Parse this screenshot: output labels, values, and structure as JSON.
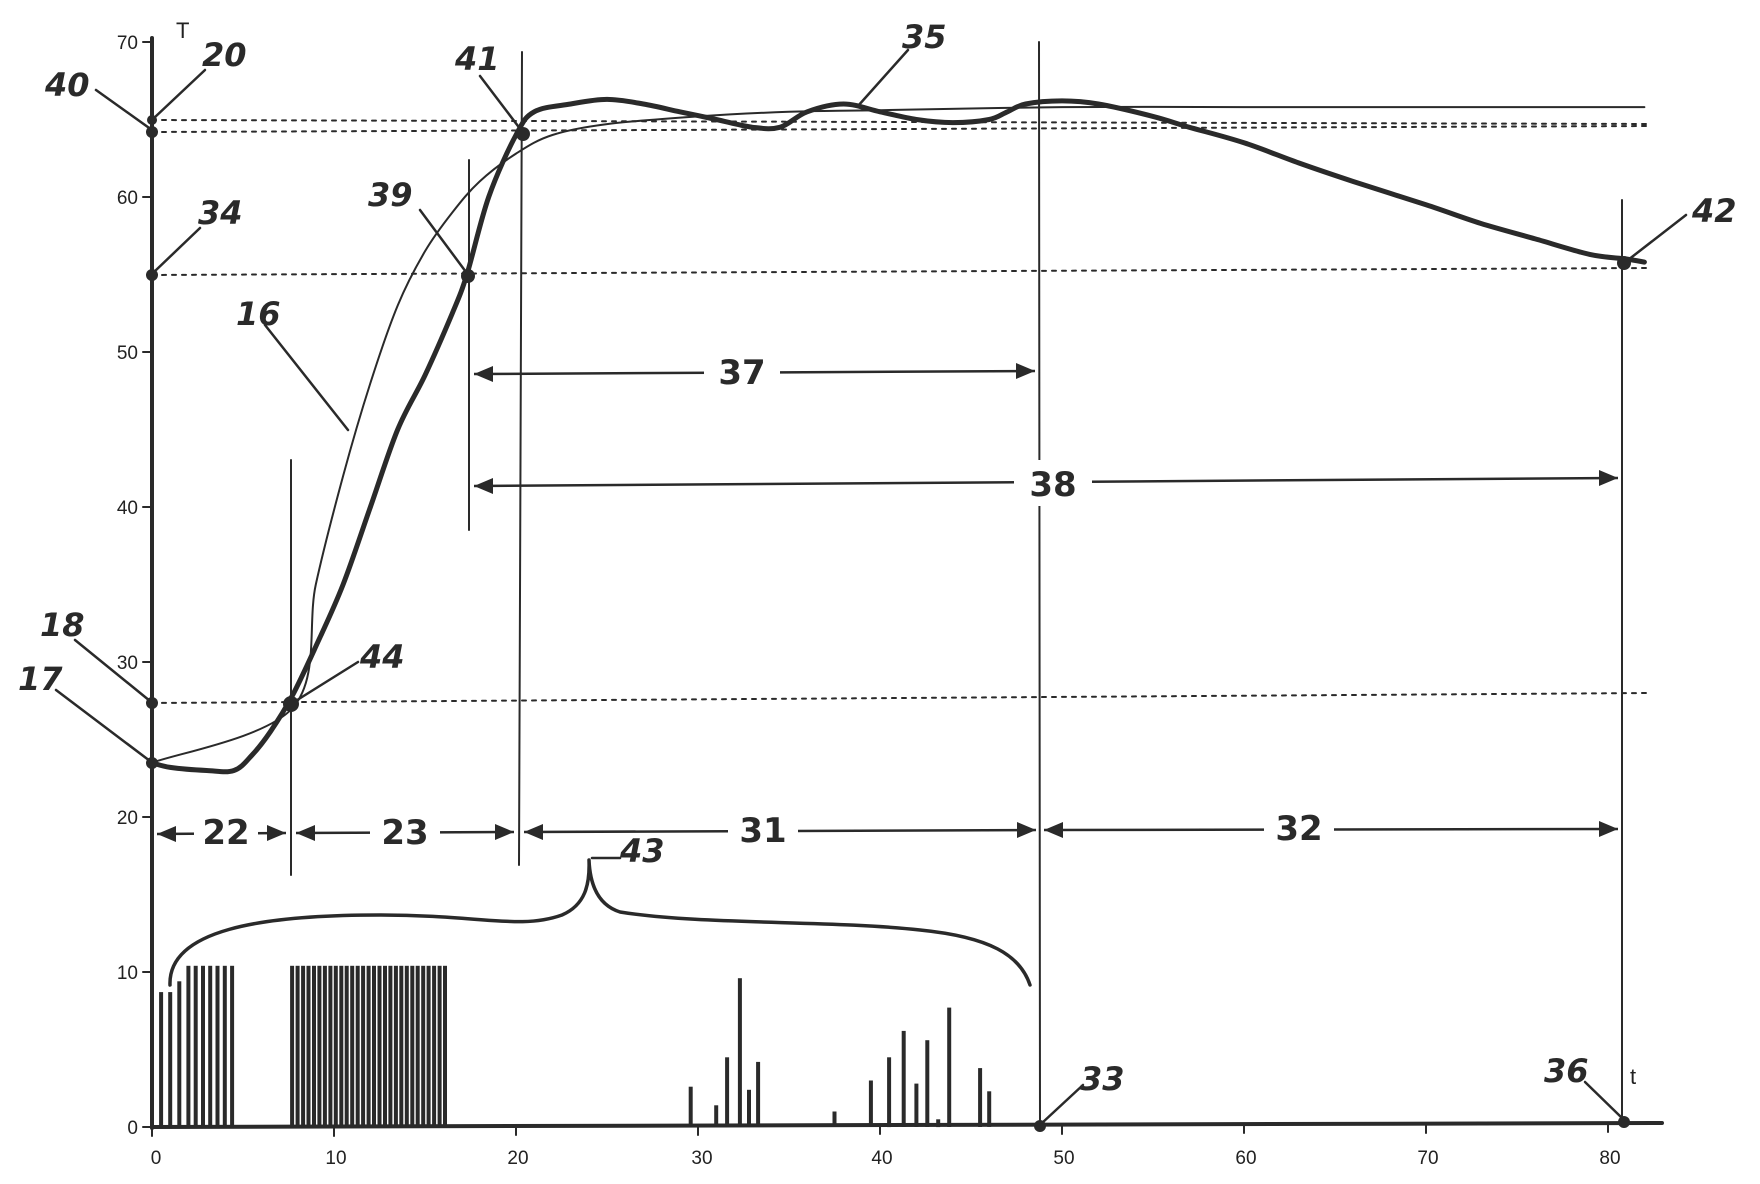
{
  "figure": {
    "y_axis_label": "T",
    "x_axis_label": "t",
    "y_ticks": [
      "0",
      "10",
      "20",
      "30",
      "40",
      "50",
      "60",
      "70"
    ],
    "x_ticks": [
      "0",
      "10",
      "20",
      "30",
      "40",
      "50",
      "60",
      "70",
      "80"
    ],
    "reference_numerals": {
      "r16": "16",
      "r17": "17",
      "r18": "18",
      "r20": "20",
      "r22": "22",
      "r23": "23",
      "r31": "31",
      "r32": "32",
      "r33": "33",
      "r34": "34",
      "r35": "35",
      "r36": "36",
      "r37": "37",
      "r38": "38",
      "r39": "39",
      "r40": "40",
      "r41": "41",
      "r42": "42",
      "r43": "43",
      "r44": "44"
    }
  },
  "chart_data": {
    "type": "line",
    "xlim": [
      0,
      82
    ],
    "ylim": [
      0,
      70
    ],
    "series": [
      {
        "x": [
          0,
          1,
          3,
          4.5,
          5.5,
          6.5,
          7.7,
          9,
          10.5,
          12,
          13.5,
          15,
          16.5,
          17.3,
          18.5,
          20,
          21,
          23,
          25,
          27,
          29,
          31,
          33,
          34.5,
          36,
          38,
          40,
          42,
          44,
          46,
          47,
          48,
          50,
          52,
          55,
          57,
          60,
          63,
          66,
          70,
          73,
          76,
          79,
          81,
          82
        ],
        "y": [
          23.5,
          23.2,
          23,
          23,
          24,
          25.5,
          27.8,
          31,
          35,
          40,
          45,
          48.5,
          52.5,
          55,
          60,
          64,
          65.5,
          66,
          66.3,
          66,
          65.5,
          65,
          64.5,
          64.5,
          65.5,
          66,
          65.5,
          65,
          64.8,
          65,
          65.5,
          66,
          66.2,
          66,
          65.2,
          64.5,
          63.5,
          62.2,
          61,
          59.5,
          58.3,
          57.3,
          56.3,
          56,
          55.8
        ]
      },
      {
        "x": [
          0,
          7.7,
          9,
          10.5,
          12,
          13.5,
          15,
          16.5,
          18,
          20,
          22,
          25,
          30,
          35,
          40,
          50,
          60,
          70,
          82
        ],
        "y": [
          23.5,
          27,
          35,
          42,
          48,
          53,
          56.5,
          59,
          61,
          62.8,
          64,
          64.7,
          65.2,
          65.5,
          65.6,
          65.8,
          65.8,
          65.8,
          65.8
        ]
      },
      {
        "x": [
          0,
          0.5,
          1,
          1.5,
          2,
          2.4,
          2.8,
          3.2,
          3.6,
          4,
          4.4,
          7.7,
          8,
          8.3,
          8.6,
          8.9,
          9.2,
          9.5,
          9.8,
          10.1,
          10.4,
          10.7,
          11,
          11.3,
          11.6,
          11.9,
          12.2,
          12.5,
          12.8,
          13.1,
          13.4,
          13.7,
          14,
          14.3,
          14.6,
          14.9,
          15.2,
          15.5,
          15.8,
          16.1,
          29.6,
          31,
          31.6,
          32.3,
          32.8,
          33.3,
          37.5,
          39.5,
          40.5,
          41.3,
          42,
          42.6,
          43.2,
          43.8,
          45.5,
          46
        ],
        "y": [
          7.4,
          8.7,
          8.7,
          9.4,
          10.4,
          10.4,
          10.4,
          10.4,
          10.4,
          10.4,
          10.4,
          10.4,
          10.4,
          10.4,
          10.4,
          10.4,
          10.4,
          10.4,
          10.4,
          10.4,
          10.4,
          10.4,
          10.4,
          10.4,
          10.4,
          10.4,
          10.4,
          10.4,
          10.4,
          10.4,
          10.4,
          10.4,
          10.4,
          10.4,
          10.4,
          10.4,
          10.4,
          10.4,
          10.4,
          10.4,
          2.6,
          1.4,
          4.5,
          9.6,
          2.4,
          4.2,
          1,
          3,
          4.5,
          6.2,
          2.8,
          5.6,
          0.5,
          7.7,
          3.8,
          2.3
        ]
      }
    ]
  }
}
